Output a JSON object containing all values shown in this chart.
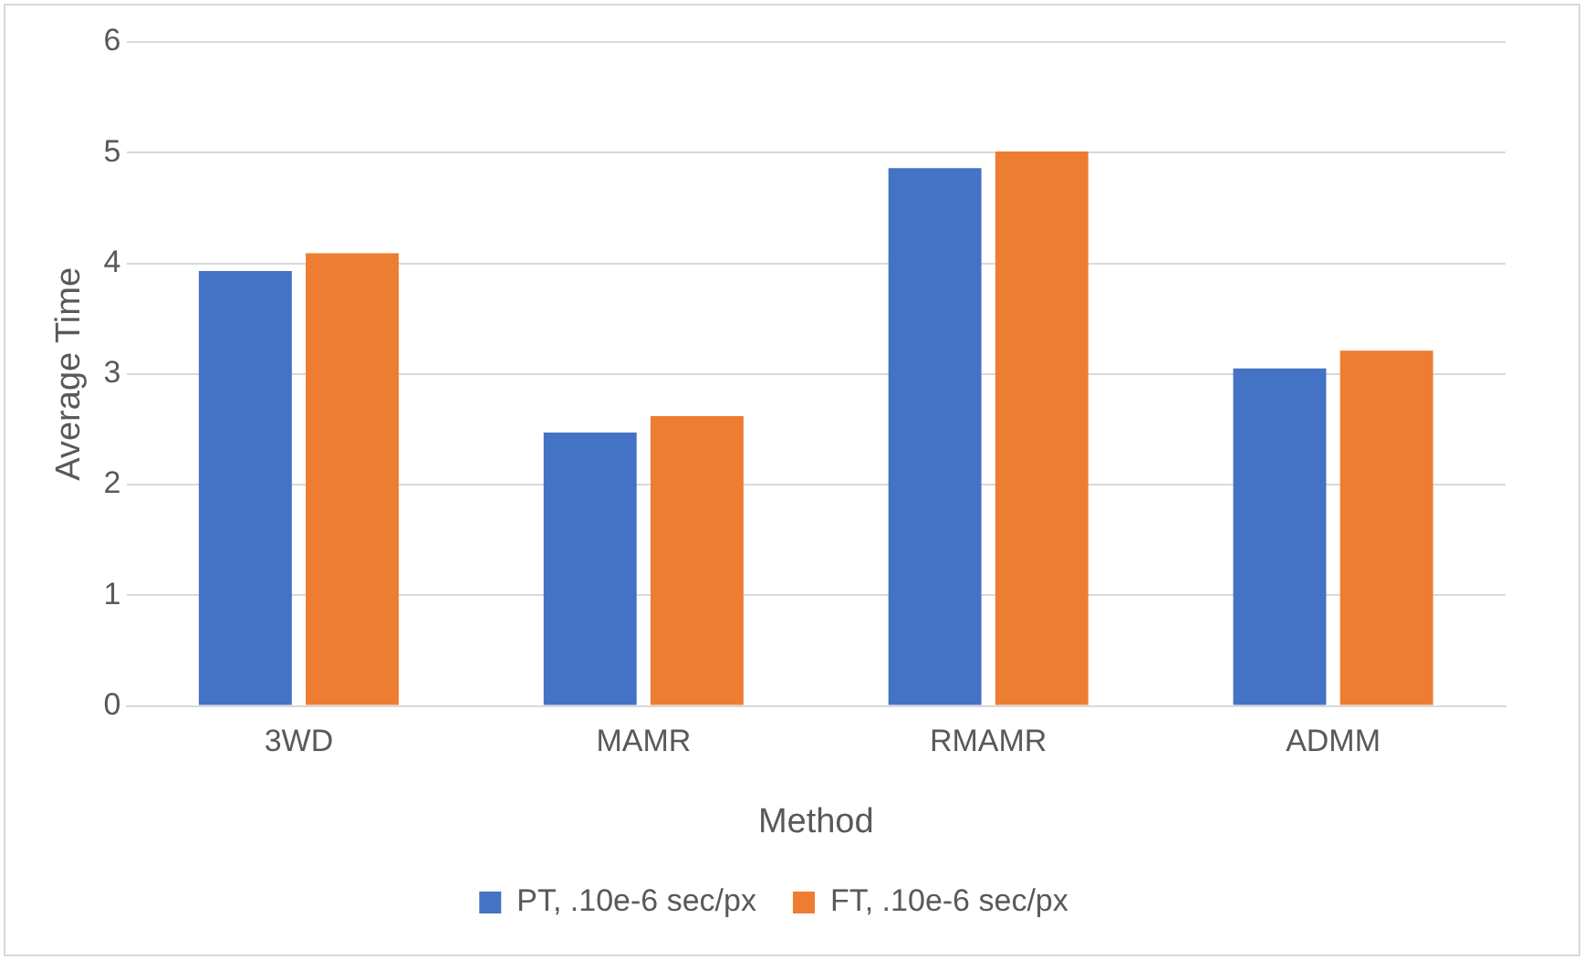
{
  "chart_data": {
    "type": "bar",
    "xlabel": "Method",
    "ylabel": "Average Time",
    "categories": [
      "3WD",
      "MAMR",
      "RMAMR",
      "ADMM"
    ],
    "series": [
      {
        "name": "PT, .10e-6 sec/px",
        "color": "#4472c4",
        "values": [
          3.93,
          2.47,
          4.86,
          3.05
        ]
      },
      {
        "name": "FT, .10e-6 sec/px",
        "color": "#ed7d31",
        "values": [
          4.09,
          2.62,
          5.01,
          3.21
        ]
      }
    ],
    "ylim": [
      0,
      6
    ],
    "yticks": [
      0,
      1,
      2,
      3,
      4,
      5,
      6
    ],
    "grid": "y",
    "legend": "bottom"
  }
}
